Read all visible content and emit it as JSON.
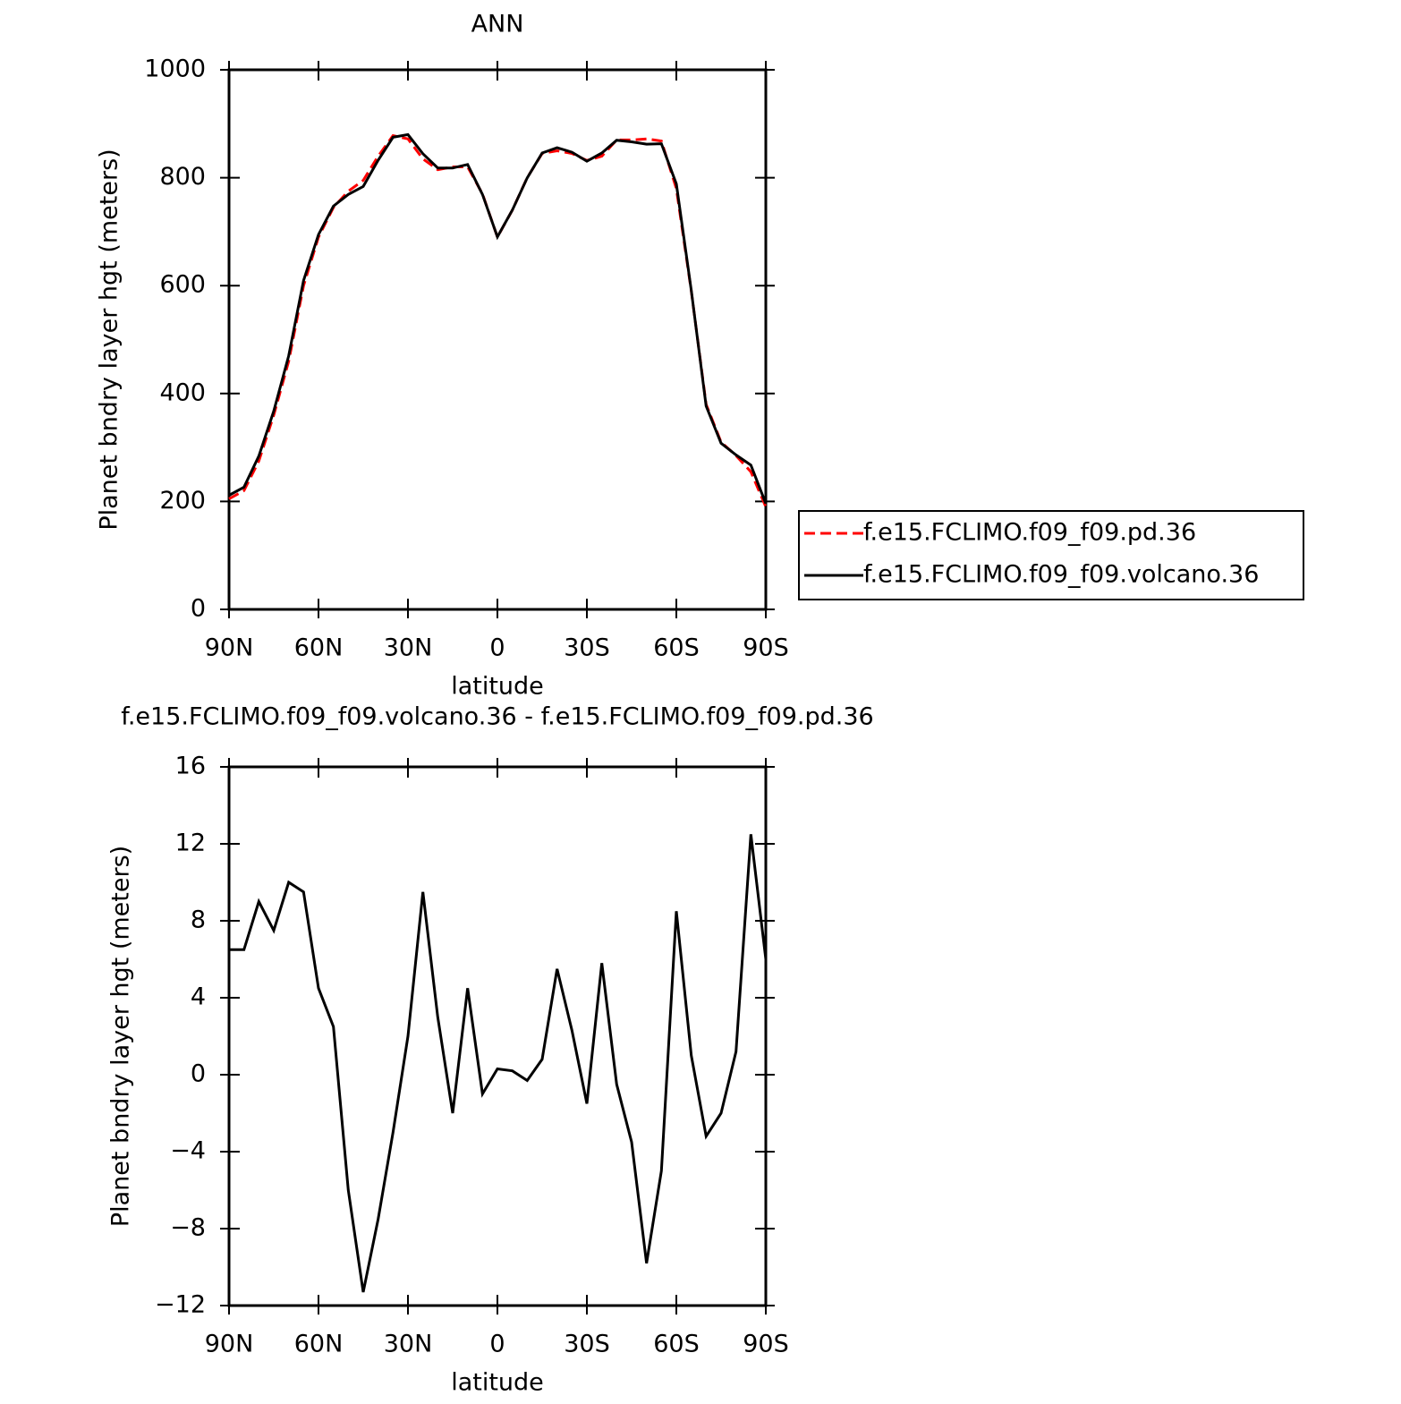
{
  "chart_data": [
    {
      "type": "line",
      "title": "ANN",
      "xlabel": "latitude",
      "ylabel": "Planet bndry layer hgt (meters)",
      "x": [
        90,
        85,
        80,
        75,
        70,
        65,
        60,
        55,
        50,
        45,
        40,
        35,
        30,
        25,
        20,
        15,
        10,
        5,
        0,
        -5,
        -10,
        -15,
        -20,
        -25,
        -30,
        -35,
        -40,
        -45,
        -50,
        -55,
        -60,
        -65,
        -70,
        -75,
        -80,
        -85,
        -90
      ],
      "series": [
        {
          "name": "f.e15.FCLIMO.f09_f09.pd.36",
          "color": "#ff0000",
          "dash": true,
          "values": [
            205,
            220,
            275,
            360,
            460,
            600,
            690,
            745,
            775,
            795,
            840,
            878,
            872,
            835,
            815,
            820,
            820,
            770,
            690,
            740,
            800,
            845,
            850,
            845,
            832,
            840,
            870,
            870,
            872,
            868,
            780,
            590,
            380,
            310,
            285,
            255,
            190
          ]
        },
        {
          "name": "f.e15.FCLIMO.f09_f09.volcano.36",
          "color": "#000000",
          "dash": false,
          "values": [
            211.5,
            226.5,
            284,
            367.5,
            470,
            609.5,
            694.5,
            747.5,
            769,
            783.7,
            832.5,
            875,
            880,
            844.5,
            818,
            818,
            824.5,
            769,
            690.3,
            740.2,
            799.7,
            845.8,
            855.5,
            847.3,
            830.5,
            845.8,
            869.5,
            866.5,
            862.2,
            863,
            788.5,
            591,
            376.8,
            308,
            286.2,
            267.5,
            196
          ]
        }
      ],
      "xlim": [
        90,
        -90
      ],
      "xticks": [
        {
          "value": 90,
          "label": "90N"
        },
        {
          "value": 60,
          "label": "60N"
        },
        {
          "value": 30,
          "label": "30N"
        },
        0,
        {
          "value": -30,
          "label": "30S"
        },
        {
          "value": -60,
          "label": "60S"
        },
        {
          "value": -90,
          "label": "90S"
        }
      ],
      "ylim": [
        0,
        1000
      ],
      "yticks": [
        0,
        200,
        400,
        600,
        800,
        1000
      ],
      "legend": "right"
    },
    {
      "type": "line",
      "title": "f.e15.FCLIMO.f09_f09.volcano.36 - f.e15.FCLIMO.f09_f09.pd.36",
      "xlabel": "latitude",
      "ylabel": "Planet bndry layer hgt (meters)",
      "x": [
        90,
        85,
        80,
        75,
        70,
        65,
        60,
        55,
        50,
        45,
        40,
        35,
        30,
        25,
        20,
        15,
        10,
        5,
        0,
        -5,
        -10,
        -15,
        -20,
        -25,
        -30,
        -35,
        -40,
        -45,
        -50,
        -55,
        -60,
        -65,
        -70,
        -75,
        -80,
        -85,
        -90
      ],
      "series": [
        {
          "color": "#000000",
          "dash": false,
          "values": [
            6.5,
            6.5,
            9,
            7.5,
            10,
            9.5,
            4.5,
            2.5,
            -6,
            -11.3,
            -7.5,
            -3,
            2,
            9.5,
            3,
            -2,
            4.5,
            -1,
            0.3,
            0.2,
            -0.3,
            0.8,
            5.5,
            2.3,
            -1.5,
            5.8,
            -0.5,
            -3.5,
            -9.8,
            -5,
            8.5,
            1,
            -3.2,
            -2,
            1.2,
            12.5,
            6
          ]
        }
      ],
      "xlim": [
        90,
        -90
      ],
      "xticks": [
        {
          "value": 90,
          "label": "90N"
        },
        {
          "value": 60,
          "label": "60N"
        },
        {
          "value": 30,
          "label": "30N"
        },
        0,
        {
          "value": -30,
          "label": "30S"
        },
        {
          "value": -60,
          "label": "60S"
        },
        {
          "value": -90,
          "label": "90S"
        }
      ],
      "ylim": [
        -12,
        16
      ],
      "yticks": [
        {
          "value": -12,
          "label": "−12"
        },
        {
          "value": -8,
          "label": "−8"
        },
        {
          "value": -4,
          "label": "−4"
        },
        0,
        4,
        8,
        12,
        16
      ]
    }
  ]
}
